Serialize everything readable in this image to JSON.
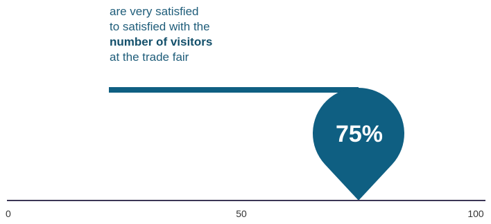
{
  "caption": {
    "line1": "are very satisfied",
    "line2": "to satisfied with the",
    "line3_bold": "number of visitors",
    "line4": "at the trade fair"
  },
  "colors": {
    "accent": "#0f5f82",
    "axis": "#3b3555"
  },
  "chart_data": {
    "type": "bar",
    "value": 75,
    "value_label": "75%",
    "xlim": [
      0,
      100
    ],
    "ticks": [
      0,
      50,
      100
    ],
    "tick_labels": [
      "0",
      "50",
      "100"
    ]
  }
}
